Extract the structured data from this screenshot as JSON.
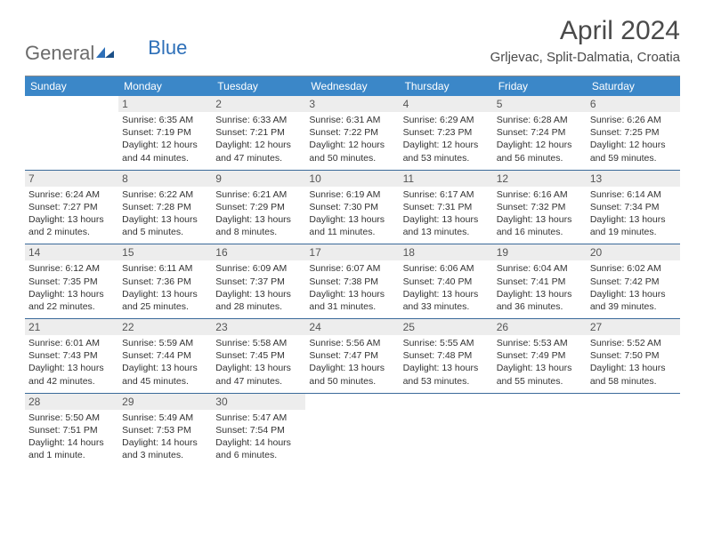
{
  "logo": {
    "text1": "General",
    "text2": "Blue"
  },
  "title": "April 2024",
  "location": "Grljevac, Split-Dalmatia, Croatia",
  "colors": {
    "header_bg": "#3b87c8",
    "header_text": "#ffffff",
    "row_divider": "#3b6a9a",
    "daynum_bg": "#ededed",
    "text": "#333333",
    "logo_blue": "#2d6fb8"
  },
  "day_names": [
    "Sunday",
    "Monday",
    "Tuesday",
    "Wednesday",
    "Thursday",
    "Friday",
    "Saturday"
  ],
  "weeks": [
    [
      {
        "n": "",
        "lines": []
      },
      {
        "n": "1",
        "lines": [
          "Sunrise: 6:35 AM",
          "Sunset: 7:19 PM",
          "Daylight: 12 hours",
          "and 44 minutes."
        ]
      },
      {
        "n": "2",
        "lines": [
          "Sunrise: 6:33 AM",
          "Sunset: 7:21 PM",
          "Daylight: 12 hours",
          "and 47 minutes."
        ]
      },
      {
        "n": "3",
        "lines": [
          "Sunrise: 6:31 AM",
          "Sunset: 7:22 PM",
          "Daylight: 12 hours",
          "and 50 minutes."
        ]
      },
      {
        "n": "4",
        "lines": [
          "Sunrise: 6:29 AM",
          "Sunset: 7:23 PM",
          "Daylight: 12 hours",
          "and 53 minutes."
        ]
      },
      {
        "n": "5",
        "lines": [
          "Sunrise: 6:28 AM",
          "Sunset: 7:24 PM",
          "Daylight: 12 hours",
          "and 56 minutes."
        ]
      },
      {
        "n": "6",
        "lines": [
          "Sunrise: 6:26 AM",
          "Sunset: 7:25 PM",
          "Daylight: 12 hours",
          "and 59 minutes."
        ]
      }
    ],
    [
      {
        "n": "7",
        "lines": [
          "Sunrise: 6:24 AM",
          "Sunset: 7:27 PM",
          "Daylight: 13 hours",
          "and 2 minutes."
        ]
      },
      {
        "n": "8",
        "lines": [
          "Sunrise: 6:22 AM",
          "Sunset: 7:28 PM",
          "Daylight: 13 hours",
          "and 5 minutes."
        ]
      },
      {
        "n": "9",
        "lines": [
          "Sunrise: 6:21 AM",
          "Sunset: 7:29 PM",
          "Daylight: 13 hours",
          "and 8 minutes."
        ]
      },
      {
        "n": "10",
        "lines": [
          "Sunrise: 6:19 AM",
          "Sunset: 7:30 PM",
          "Daylight: 13 hours",
          "and 11 minutes."
        ]
      },
      {
        "n": "11",
        "lines": [
          "Sunrise: 6:17 AM",
          "Sunset: 7:31 PM",
          "Daylight: 13 hours",
          "and 13 minutes."
        ]
      },
      {
        "n": "12",
        "lines": [
          "Sunrise: 6:16 AM",
          "Sunset: 7:32 PM",
          "Daylight: 13 hours",
          "and 16 minutes."
        ]
      },
      {
        "n": "13",
        "lines": [
          "Sunrise: 6:14 AM",
          "Sunset: 7:34 PM",
          "Daylight: 13 hours",
          "and 19 minutes."
        ]
      }
    ],
    [
      {
        "n": "14",
        "lines": [
          "Sunrise: 6:12 AM",
          "Sunset: 7:35 PM",
          "Daylight: 13 hours",
          "and 22 minutes."
        ]
      },
      {
        "n": "15",
        "lines": [
          "Sunrise: 6:11 AM",
          "Sunset: 7:36 PM",
          "Daylight: 13 hours",
          "and 25 minutes."
        ]
      },
      {
        "n": "16",
        "lines": [
          "Sunrise: 6:09 AM",
          "Sunset: 7:37 PM",
          "Daylight: 13 hours",
          "and 28 minutes."
        ]
      },
      {
        "n": "17",
        "lines": [
          "Sunrise: 6:07 AM",
          "Sunset: 7:38 PM",
          "Daylight: 13 hours",
          "and 31 minutes."
        ]
      },
      {
        "n": "18",
        "lines": [
          "Sunrise: 6:06 AM",
          "Sunset: 7:40 PM",
          "Daylight: 13 hours",
          "and 33 minutes."
        ]
      },
      {
        "n": "19",
        "lines": [
          "Sunrise: 6:04 AM",
          "Sunset: 7:41 PM",
          "Daylight: 13 hours",
          "and 36 minutes."
        ]
      },
      {
        "n": "20",
        "lines": [
          "Sunrise: 6:02 AM",
          "Sunset: 7:42 PM",
          "Daylight: 13 hours",
          "and 39 minutes."
        ]
      }
    ],
    [
      {
        "n": "21",
        "lines": [
          "Sunrise: 6:01 AM",
          "Sunset: 7:43 PM",
          "Daylight: 13 hours",
          "and 42 minutes."
        ]
      },
      {
        "n": "22",
        "lines": [
          "Sunrise: 5:59 AM",
          "Sunset: 7:44 PM",
          "Daylight: 13 hours",
          "and 45 minutes."
        ]
      },
      {
        "n": "23",
        "lines": [
          "Sunrise: 5:58 AM",
          "Sunset: 7:45 PM",
          "Daylight: 13 hours",
          "and 47 minutes."
        ]
      },
      {
        "n": "24",
        "lines": [
          "Sunrise: 5:56 AM",
          "Sunset: 7:47 PM",
          "Daylight: 13 hours",
          "and 50 minutes."
        ]
      },
      {
        "n": "25",
        "lines": [
          "Sunrise: 5:55 AM",
          "Sunset: 7:48 PM",
          "Daylight: 13 hours",
          "and 53 minutes."
        ]
      },
      {
        "n": "26",
        "lines": [
          "Sunrise: 5:53 AM",
          "Sunset: 7:49 PM",
          "Daylight: 13 hours",
          "and 55 minutes."
        ]
      },
      {
        "n": "27",
        "lines": [
          "Sunrise: 5:52 AM",
          "Sunset: 7:50 PM",
          "Daylight: 13 hours",
          "and 58 minutes."
        ]
      }
    ],
    [
      {
        "n": "28",
        "lines": [
          "Sunrise: 5:50 AM",
          "Sunset: 7:51 PM",
          "Daylight: 14 hours",
          "and 1 minute."
        ]
      },
      {
        "n": "29",
        "lines": [
          "Sunrise: 5:49 AM",
          "Sunset: 7:53 PM",
          "Daylight: 14 hours",
          "and 3 minutes."
        ]
      },
      {
        "n": "30",
        "lines": [
          "Sunrise: 5:47 AM",
          "Sunset: 7:54 PM",
          "Daylight: 14 hours",
          "and 6 minutes."
        ]
      },
      {
        "n": "",
        "lines": []
      },
      {
        "n": "",
        "lines": []
      },
      {
        "n": "",
        "lines": []
      },
      {
        "n": "",
        "lines": []
      }
    ]
  ]
}
